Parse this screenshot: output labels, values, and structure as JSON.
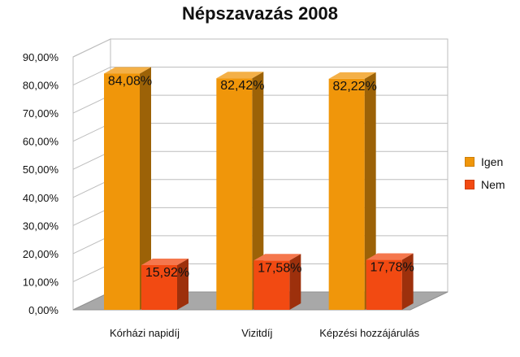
{
  "chart_data": {
    "type": "bar",
    "title": "Népszavazás 2008",
    "categories": [
      "Kórházi napidíj",
      "Vizitdíj",
      "Képzési hozzájárulás"
    ],
    "series": [
      {
        "name": "Igen",
        "values": [
          84.08,
          82.42,
          82.22
        ],
        "labels": [
          "84,08%",
          "82,42%",
          "82,22%"
        ],
        "color": "#f0960a"
      },
      {
        "name": "Nem",
        "values": [
          15.92,
          17.58,
          17.78
        ],
        "labels": [
          "15,92%",
          "17,58%",
          "17,78%"
        ],
        "color": "#f24a12"
      }
    ],
    "ylim": [
      0,
      90
    ],
    "yticks": [
      "0,00%",
      "10,00%",
      "20,00%",
      "30,00%",
      "40,00%",
      "50,00%",
      "60,00%",
      "70,00%",
      "80,00%",
      "90,00%"
    ],
    "grid": true,
    "legend_position": "right",
    "style": "3d-bar"
  }
}
